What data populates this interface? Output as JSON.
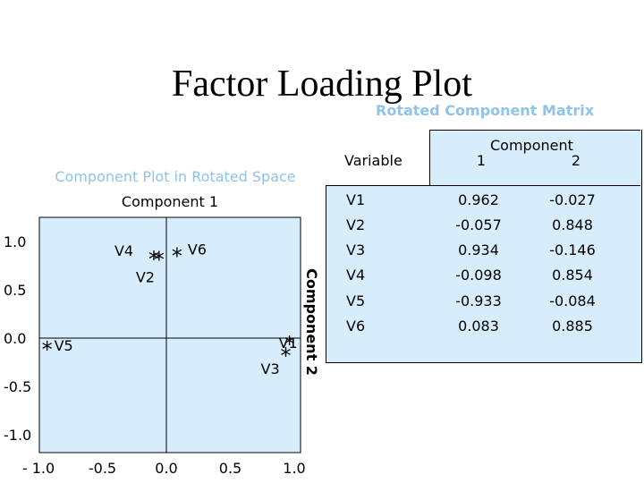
{
  "main_title": "Factor Loading Plot",
  "table_subtitle": "Rotated Component Matrix",
  "table": {
    "variable_header": "Variable",
    "component_header": "Component",
    "col_headers": [
      "1",
      "2"
    ],
    "rows": [
      {
        "variable": "V1",
        "c1": "0.962",
        "c2": "-0.027"
      },
      {
        "variable": "V2",
        "c1": "-0.057",
        "c2": "0.848"
      },
      {
        "variable": "V3",
        "c1": "0.934",
        "c2": "-0.146"
      },
      {
        "variable": "V4",
        "c1": "-0.098",
        "c2": "0.854"
      },
      {
        "variable": "V5",
        "c1": "-0.933",
        "c2": "-0.084"
      },
      {
        "variable": "V6",
        "c1": "0.083",
        "c2": "0.885"
      }
    ]
  },
  "chart_data": {
    "type": "scatter",
    "title": "Component Plot in Rotated Space",
    "xlabel": "Component 1",
    "ylabel": "Component 2",
    "xlim": [
      -1.0,
      1.0
    ],
    "ylim": [
      -1.0,
      1.0
    ],
    "x_ticks": [
      "- 1.0",
      "-0.5",
      "0.0",
      "0.5",
      "1.0"
    ],
    "x_tick_values": [
      -1.0,
      -0.5,
      0.0,
      0.5,
      1.0
    ],
    "y_ticks": [
      "1.0",
      "0.5",
      "0.0",
      "-0.5",
      "-1.0"
    ],
    "y_tick_values": [
      1.0,
      0.5,
      0.0,
      -0.5,
      -1.0
    ],
    "marker": "*",
    "points": [
      {
        "label": "V1",
        "x": 0.962,
        "y": -0.027
      },
      {
        "label": "V2",
        "x": -0.057,
        "y": 0.848
      },
      {
        "label": "V3",
        "x": 0.934,
        "y": -0.146
      },
      {
        "label": "V4",
        "x": -0.098,
        "y": 0.854
      },
      {
        "label": "V5",
        "x": -0.933,
        "y": -0.084
      },
      {
        "label": "V6",
        "x": 0.083,
        "y": 0.885
      }
    ],
    "colors": {
      "plot_bg": "#d7edfb",
      "title": "#8fc3ea",
      "axis": "#000000"
    }
  }
}
